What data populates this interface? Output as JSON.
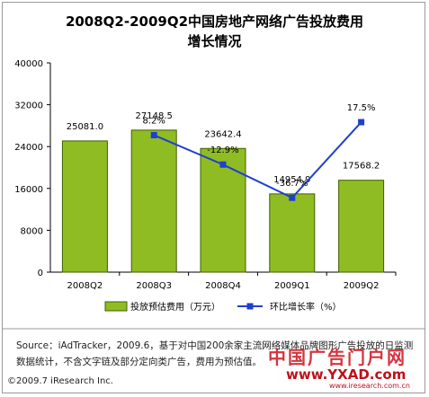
{
  "title_line1": "2008Q2-2009Q2中国房地产网络广告投放费用",
  "title_line2": "增长情况",
  "source_line1": "Source：iAdTracker，2009.6，基于对中国200余家主流网络媒体品牌图形广告投放的日监测",
  "source_line2": "数据统计，不含文字链及部分定向类广告，费用为预估值。",
  "footer": "©2009.7 iResearch Inc.",
  "watermark": {
    "text": "中国广告门户网",
    "url": "www.YXAD.com",
    "url_small": "www.iresearch.com.cn"
  },
  "chart_data": {
    "type": "bar",
    "categories": [
      "2008Q2",
      "2008Q3",
      "2008Q4",
      "2009Q1",
      "2009Q2"
    ],
    "series": [
      {
        "name": "投放预估费用（万元）",
        "type": "bar",
        "values": [
          25081.0,
          27148.5,
          23642.4,
          14954.9,
          17568.2
        ],
        "labels": [
          "25081.0",
          "27148.5",
          "23642.4",
          "14954.9",
          "17568.2"
        ],
        "color": "#8fbc22"
      },
      {
        "name": "环比增长率（%）",
        "type": "line",
        "values": [
          null,
          8.2,
          -12.9,
          -36.7,
          17.5
        ],
        "labels": [
          "",
          "8.2%",
          "-12.9%",
          "-36.7%",
          "17.5%"
        ],
        "color": "#1f3fd0"
      }
    ],
    "ylim": [
      0,
      40000
    ],
    "yticks": [
      0,
      8000,
      16000,
      24000,
      32000,
      40000
    ],
    "line_ylim": [
      -90,
      60
    ],
    "grid": false,
    "legend_position": "bottom"
  }
}
